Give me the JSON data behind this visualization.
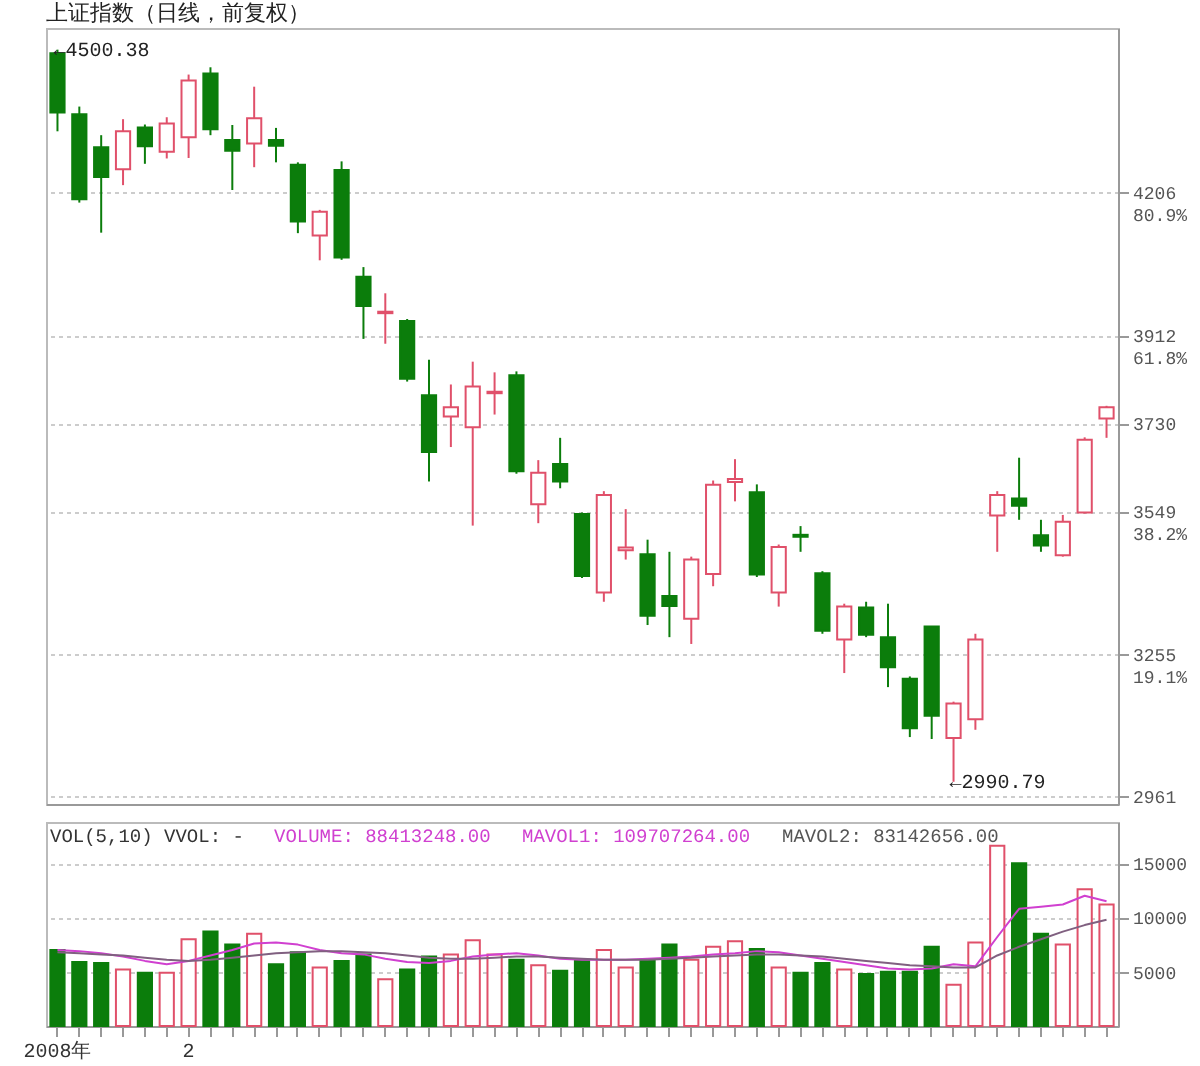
{
  "chart_data": [
    {
      "type": "candlestick",
      "title": "上证指数（日线，前复权）",
      "grid": "y",
      "tick_labels": "y",
      "categories": [
        "2008年",
        null,
        null,
        null,
        null,
        null,
        "2",
        null,
        null,
        null,
        null,
        null,
        null,
        null,
        null,
        null,
        null,
        null,
        null,
        null,
        null,
        null,
        null,
        null,
        null,
        null,
        null,
        null,
        null,
        null,
        null,
        null,
        null,
        null,
        null,
        null,
        null,
        null,
        null,
        null,
        null,
        null,
        null,
        null,
        null,
        null,
        null,
        null,
        null
      ],
      "ohlc": [
        [
          4493,
          4500.38,
          4332,
          4371
        ],
        [
          4367,
          4383,
          4185,
          4192
        ],
        [
          4299,
          4324,
          4123,
          4238
        ],
        [
          4254,
          4357,
          4221,
          4332
        ],
        [
          4340,
          4346,
          4265,
          4301
        ],
        [
          4290,
          4361,
          4276,
          4348
        ],
        [
          4320,
          4449,
          4277,
          4437
        ],
        [
          4451,
          4464,
          4324,
          4336
        ],
        [
          4314,
          4345,
          4211,
          4292
        ],
        [
          4307,
          4424,
          4258,
          4359
        ],
        [
          4314,
          4339,
          4268,
          4302
        ],
        [
          4263,
          4268,
          4122,
          4146
        ],
        [
          4117,
          4170,
          4066,
          4166
        ],
        [
          4252,
          4270,
          4067,
          4072
        ],
        [
          4032,
          4052,
          3904,
          3972
        ],
        [
          3957,
          3998,
          3894,
          3960
        ],
        [
          3941,
          3945,
          3816,
          3822
        ],
        [
          3788,
          3861,
          3610,
          3671
        ],
        [
          3744,
          3810,
          3681,
          3763
        ],
        [
          3722,
          3857,
          3519,
          3806
        ],
        [
          3792,
          3835,
          3748,
          3795
        ],
        [
          3829,
          3837,
          3626,
          3631
        ],
        [
          3563,
          3654,
          3524,
          3628
        ],
        [
          3646,
          3700,
          3596,
          3610
        ],
        [
          3543,
          3546,
          3411,
          3415
        ],
        [
          3381,
          3590,
          3362,
          3582
        ],
        [
          3468,
          3553,
          3449,
          3474
        ],
        [
          3460,
          3490,
          3314,
          3333
        ],
        [
          3374,
          3465,
          3289,
          3353
        ],
        [
          3327,
          3455,
          3275,
          3449
        ],
        [
          3419,
          3612,
          3394,
          3603
        ],
        [
          3609,
          3656,
          3569,
          3615
        ],
        [
          3588,
          3604,
          3413,
          3418
        ],
        [
          3381,
          3480,
          3352,
          3475
        ],
        [
          3500,
          3518,
          3465,
          3496
        ],
        [
          3421,
          3425,
          3296,
          3302
        ],
        [
          3284,
          3358,
          3215,
          3352
        ],
        [
          3350,
          3362,
          3289,
          3294
        ],
        [
          3289,
          3358,
          3186,
          3227
        ],
        [
          3203,
          3208,
          3083,
          3101
        ],
        [
          3311,
          3311,
          3079,
          3127
        ],
        [
          3081,
          3156,
          2990.79,
          3152
        ],
        [
          3120,
          3296,
          3098,
          3284
        ],
        [
          3540,
          3590,
          3465,
          3582
        ],
        [
          3575,
          3659,
          3531,
          3560
        ],
        [
          3499,
          3531,
          3465,
          3478
        ],
        [
          3458,
          3541,
          3455,
          3527
        ],
        [
          3546,
          3701,
          3544,
          3696
        ],
        [
          3740,
          3766,
          3700,
          3763
        ]
      ],
      "ylim": [
        2945,
        4545
      ],
      "yticks": [
        {
          "value": 4206,
          "label": "4206\n80.9%"
        },
        {
          "value": 3912,
          "label": "3912\n61.8%"
        },
        3730,
        {
          "value": 3549,
          "label": "3549\n38.2%"
        },
        {
          "value": 3255,
          "label": "3255\n19.1%"
        },
        2961
      ],
      "annotations": [
        {
          "text": "←4500.38",
          "x": "2008年",
          "y": 4500.38
        },
        "←2990.79"
      ]
    },
    {
      "type": "bar",
      "grid": "y",
      "categories": [
        "2008年",
        null,
        null,
        null,
        null,
        null,
        "2",
        null,
        null,
        null,
        null,
        null,
        null,
        null,
        null,
        null,
        null,
        null,
        null,
        null,
        null,
        null,
        null,
        null,
        null,
        null,
        null,
        null,
        null,
        null,
        null,
        null,
        null,
        null,
        null,
        null,
        null,
        null,
        null,
        null,
        null,
        null,
        null,
        null,
        null,
        null,
        null,
        null,
        null
      ],
      "ylim": [
        0,
        18800
      ],
      "yticks": [
        5000,
        10000,
        15000
      ],
      "annotations": [
        "VOL(5,10) VVOL: -",
        "VOLUME: 88413248.00",
        "MAVOL1: 109707264.00",
        "MAVOL2: 83142656.00"
      ],
      "series": [
        {
          "type": "bar",
          "values": [
            7000,
            5900,
            5800,
            5200,
            4900,
            4900,
            8000,
            8700,
            7500,
            8500,
            5700,
            6800,
            5400,
            6000,
            6600,
            4300,
            5200,
            6400,
            6600,
            7900,
            6600,
            6100,
            5600,
            5100,
            6100,
            7000,
            5400,
            6100,
            7500,
            6100,
            7300,
            7800,
            7100,
            5400,
            4900,
            5800,
            5200,
            4800,
            5000,
            5000,
            7300,
            3800,
            7700,
            16600,
            15000,
            8500,
            7500,
            12600,
            11200
          ],
          "colors": [
            "#0b7d0b",
            "#0b7d0b",
            "#0b7d0b",
            "#e0506a",
            "#0b7d0b",
            "#e0506a",
            "#e0506a",
            "#0b7d0b",
            "#0b7d0b",
            "#e0506a",
            "#0b7d0b",
            "#0b7d0b",
            "#e0506a",
            "#0b7d0b",
            "#0b7d0b",
            "#e0506a",
            "#0b7d0b",
            "#0b7d0b",
            "#e0506a",
            "#e0506a",
            "#e0506a",
            "#0b7d0b",
            "#e0506a",
            "#0b7d0b",
            "#0b7d0b",
            "#e0506a",
            "#e0506a",
            "#0b7d0b",
            "#0b7d0b",
            "#e0506a",
            "#e0506a",
            "#e0506a",
            "#0b7d0b",
            "#e0506a",
            "#0b7d0b",
            "#0b7d0b",
            "#e0506a",
            "#0b7d0b",
            "#0b7d0b",
            "#0b7d0b",
            "#0b7d0b",
            "#e0506a",
            "#e0506a",
            "#e0506a",
            "#0b7d0b",
            "#0b7d0b",
            "#e0506a",
            "#e0506a",
            "#e0506a"
          ]
        },
        {
          "type": "line",
          "color": "#d040d0",
          "values": [
            7000,
            6900,
            6700,
            6400,
            6000,
            5700,
            6000,
            6500,
            7000,
            7600,
            7700,
            7500,
            7000,
            6700,
            6600,
            6200,
            5900,
            5800,
            6000,
            6400,
            6600,
            6700,
            6500,
            6200,
            6100,
            6100,
            6100,
            6200,
            6300,
            6400,
            6600,
            6700,
            6900,
            6800,
            6500,
            6200,
            5900,
            5600,
            5300,
            5200,
            5300,
            5700,
            5500,
            8200,
            10800,
            11000,
            11200,
            12000,
            11500
          ]
        },
        {
          "type": "line",
          "color": "#806080",
          "values": [
            6800,
            6700,
            6600,
            6500,
            6300,
            6100,
            6000,
            6100,
            6300,
            6500,
            6700,
            6800,
            6900,
            6900,
            6800,
            6700,
            6500,
            6300,
            6200,
            6200,
            6300,
            6400,
            6400,
            6300,
            6200,
            6100,
            6100,
            6100,
            6200,
            6300,
            6400,
            6500,
            6600,
            6600,
            6500,
            6400,
            6200,
            6000,
            5800,
            5600,
            5500,
            5400,
            5400,
            6500,
            7300,
            8000,
            8700,
            9300,
            9800
          ]
        }
      ]
    }
  ]
}
